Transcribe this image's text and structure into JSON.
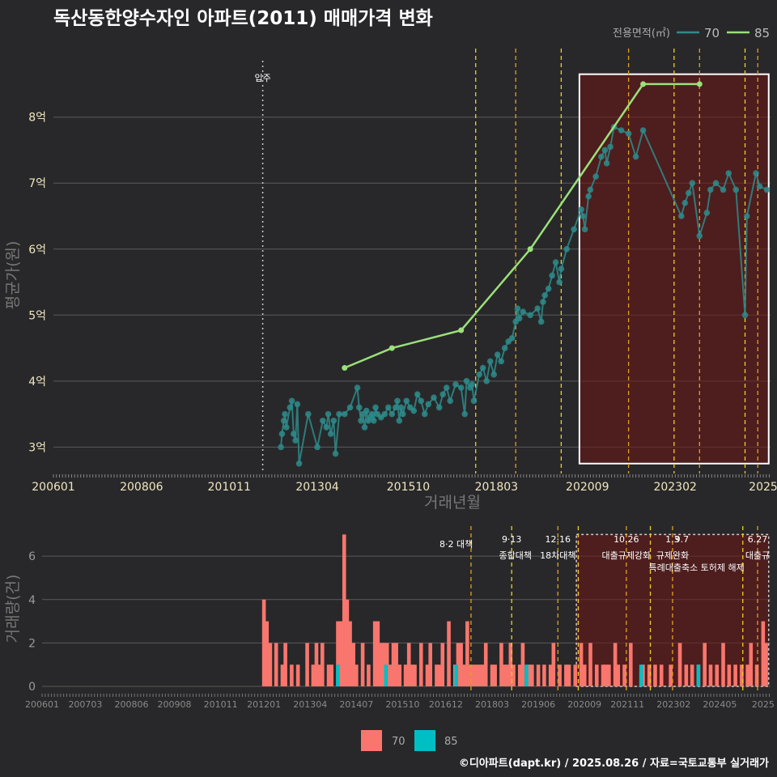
{
  "title": "독산동한양수자인 아파트(2011) 매매가격 변화",
  "legend": {
    "title": "전용면적(㎡)",
    "items": [
      {
        "label": "70",
        "color": "#2e8b8b"
      },
      {
        "label": "85",
        "color": "#9be07a"
      }
    ]
  },
  "move_in_label": "입주",
  "footer": "©디아파트(dapt.kr) / 2025.08.26 / 자료=국토교통부 실거래가",
  "bottom_legend": [
    {
      "label": "70",
      "color": "#f8766d"
    },
    {
      "label": "85",
      "color": "#00bfc4"
    }
  ],
  "chart_data": [
    {
      "type": "line",
      "title": "독산동한양수자인 아파트(2011) 매매가격 변화",
      "xlabel": "거래년월",
      "ylabel": "평균가(원)",
      "x_tick_labels": [
        "200601",
        "200806",
        "201011",
        "201304",
        "201510",
        "201803",
        "202009",
        "202302",
        "2025"
      ],
      "y_tick_labels": [
        "3억",
        "4억",
        "5억",
        "6억",
        "7억",
        "8억"
      ],
      "y_ticks": [
        3,
        4,
        5,
        6,
        7,
        8
      ],
      "xlim": [
        2006.0,
        2025.7
      ],
      "ylim": [
        2.6,
        9.1
      ],
      "y_unit": "억",
      "move_in": 2011.75,
      "highlight_box": [
        2020.45,
        2025.65,
        2.75,
        8.65
      ],
      "policy_lines": [
        2017.6,
        2018.7,
        2019.95,
        2021.8,
        2023.05,
        2023.75,
        2025.0,
        2025.35
      ],
      "series": [
        {
          "name": "70",
          "x": [
            2012.25,
            2012.28,
            2012.33,
            2012.36,
            2012.4,
            2012.5,
            2012.55,
            2012.6,
            2012.65,
            2012.7,
            2012.75,
            2013.0,
            2013.25,
            2013.4,
            2013.5,
            2013.55,
            2013.62,
            2013.7,
            2013.75,
            2013.85,
            2014.0,
            2014.15,
            2014.35,
            2014.4,
            2014.45,
            2014.5,
            2014.55,
            2014.6,
            2014.65,
            2014.7,
            2014.75,
            2014.8,
            2014.85,
            2014.9,
            2015.0,
            2015.1,
            2015.2,
            2015.3,
            2015.4,
            2015.45,
            2015.5,
            2015.55,
            2015.6,
            2015.7,
            2015.8,
            2015.9,
            2016.0,
            2016.1,
            2016.2,
            2016.3,
            2016.45,
            2016.6,
            2016.7,
            2016.8,
            2016.9,
            2017.05,
            2017.2,
            2017.3,
            2017.35,
            2017.45,
            2017.5,
            2017.55,
            2017.7,
            2017.8,
            2017.9,
            2018.0,
            2018.1,
            2018.2,
            2018.3,
            2018.4,
            2018.5,
            2018.6,
            2018.7,
            2018.75,
            2018.8,
            2018.9,
            2019.1,
            2019.3,
            2019.4,
            2019.45,
            2019.5,
            2019.6,
            2019.7,
            2019.8,
            2019.9,
            2019.95,
            2020.1,
            2020.3,
            2020.5,
            2020.55,
            2020.6,
            2020.7,
            2020.75,
            2020.9,
            2021.05,
            2021.15,
            2021.2,
            2021.3,
            2021.4,
            2021.6,
            2021.8,
            2022.0,
            2022.2,
            2023.25,
            2023.35,
            2023.45,
            2023.55,
            2023.75,
            2023.95,
            2024.05,
            2024.2,
            2024.4,
            2024.55,
            2024.75,
            2025.0,
            2025.05,
            2025.3,
            2025.4,
            2025.6
          ],
          "y": [
            3.0,
            3.2,
            3.4,
            3.5,
            3.3,
            3.6,
            3.7,
            3.2,
            3.1,
            3.65,
            2.75,
            3.5,
            3.0,
            3.4,
            3.3,
            3.5,
            3.2,
            3.4,
            2.9,
            3.5,
            3.5,
            3.6,
            3.9,
            3.6,
            3.4,
            3.5,
            3.3,
            3.55,
            3.4,
            3.45,
            3.5,
            3.4,
            3.6,
            3.5,
            3.45,
            3.5,
            3.6,
            3.5,
            3.6,
            3.7,
            3.4,
            3.6,
            3.5,
            3.7,
            3.6,
            3.55,
            3.8,
            3.7,
            3.5,
            3.65,
            3.75,
            3.6,
            3.8,
            3.9,
            3.7,
            3.95,
            3.9,
            3.5,
            4.0,
            3.9,
            3.95,
            3.7,
            4.1,
            4.2,
            4.0,
            4.3,
            4.1,
            4.4,
            4.3,
            4.5,
            4.6,
            4.65,
            4.9,
            5.1,
            4.95,
            5.05,
            5.0,
            5.1,
            4.9,
            5.2,
            5.3,
            5.4,
            5.6,
            5.8,
            5.5,
            5.7,
            6.0,
            6.3,
            6.6,
            6.5,
            6.3,
            6.8,
            6.9,
            7.1,
            7.4,
            7.5,
            7.3,
            7.55,
            7.85,
            7.8,
            7.75,
            7.4,
            7.8,
            6.5,
            6.7,
            6.85,
            7.0,
            6.2,
            6.55,
            6.9,
            7.0,
            6.9,
            7.15,
            6.9,
            5.0,
            6.5,
            7.15,
            6.95,
            6.9
          ]
        },
        {
          "name": "85",
          "x": [
            2014.0,
            2015.3,
            2017.2,
            2019.1,
            2022.2,
            2023.75
          ],
          "y": [
            4.2,
            4.5,
            4.77,
            6.0,
            8.5,
            8.5
          ]
        }
      ]
    },
    {
      "type": "bar",
      "xlabel": "",
      "ylabel": "거래량(건)",
      "x_tick_labels": [
        "200601",
        "200703",
        "200806",
        "200908",
        "201011",
        "201201",
        "201304",
        "201407",
        "201510",
        "201612",
        "201803",
        "201906",
        "202009",
        "202111",
        "202302",
        "202405",
        "2025"
      ],
      "y_tick_labels": [
        "0",
        "2",
        "4",
        "6"
      ],
      "y_ticks": [
        0,
        2,
        4,
        6
      ],
      "xlim": [
        2006.0,
        2025.7
      ],
      "ylim": [
        0,
        7.2
      ],
      "highlight_box": [
        2020.45,
        2025.65,
        0,
        7.0
      ],
      "policy_lines": [
        2017.6,
        2018.7,
        2019.95,
        2020.5,
        2021.8,
        2022.45,
        2023.05,
        2024.95,
        2025.35
      ],
      "annotations": [
        {
          "x": 2017.2,
          "label": "8·2 대책"
        },
        {
          "x": 2018.7,
          "label": "9·13"
        },
        {
          "x": 2018.8,
          "label": "종합대책"
        },
        {
          "x": 2019.95,
          "label": "12·16"
        },
        {
          "x": 2019.95,
          "label": "18차대책"
        },
        {
          "x": 2021.8,
          "label": "10.26"
        },
        {
          "x": 2021.8,
          "label": "대출규제강화"
        },
        {
          "x": 2023.05,
          "label": "1.3"
        },
        {
          "x": 2023.05,
          "label": "규제완화"
        },
        {
          "x": 2023.3,
          "label": "9.7"
        },
        {
          "x": 2023.7,
          "label": "특례대출축소 토허제 해제"
        },
        {
          "x": 2025.35,
          "label": "6.27"
        },
        {
          "x": 2025.35,
          "label": "대출규"
        }
      ],
      "series": [
        {
          "name": "70",
          "x": [
            2012.0,
            2012.08,
            2012.17,
            2012.33,
            2012.5,
            2012.58,
            2012.75,
            2012.92,
            2013.17,
            2013.33,
            2013.42,
            2013.5,
            2013.58,
            2013.75,
            2013.83,
            2014.0,
            2014.08,
            2014.17,
            2014.25,
            2014.33,
            2014.42,
            2014.5,
            2014.67,
            2014.83,
            2015.0,
            2015.08,
            2015.17,
            2015.25,
            2015.33,
            2015.42,
            2015.5,
            2015.58,
            2015.67,
            2015.83,
            2015.92,
            2016.0,
            2016.08,
            2016.25,
            2016.42,
            2016.5,
            2016.67,
            2016.75,
            2016.83,
            2017.0,
            2017.17,
            2017.25,
            2017.33,
            2017.42,
            2017.5,
            2017.58,
            2017.67,
            2017.75,
            2017.83,
            2017.92,
            2018.0,
            2018.17,
            2018.25,
            2018.42,
            2018.5,
            2018.58,
            2018.67,
            2018.75,
            2018.92,
            2019.0,
            2019.17,
            2019.25,
            2019.42,
            2019.58,
            2019.75,
            2019.83,
            2020.0,
            2020.17,
            2020.25,
            2020.42,
            2020.58,
            2020.67,
            2020.83,
            2021.0,
            2021.17,
            2021.25,
            2021.33,
            2021.5,
            2021.58,
            2021.75,
            2021.92,
            2022.25,
            2022.42,
            2022.58,
            2022.75,
            2023.0,
            2023.25,
            2023.42,
            2023.58,
            2023.75,
            2023.92,
            2024.08,
            2024.25,
            2024.42,
            2024.58,
            2024.75,
            2024.92,
            2025.08,
            2025.17,
            2025.33,
            2025.5,
            2025.58
          ],
          "y": [
            4,
            3,
            2,
            2,
            1,
            2,
            1,
            1,
            2,
            1,
            2,
            1,
            2,
            1,
            1,
            3,
            3,
            7,
            4,
            3,
            2,
            1,
            2,
            1,
            3,
            3,
            2,
            2,
            2,
            1,
            2,
            2,
            1,
            1,
            2,
            1,
            1,
            2,
            1,
            2,
            1,
            1,
            2,
            3,
            1,
            2,
            2,
            1,
            3,
            1,
            1,
            1,
            1,
            1,
            2,
            1,
            1,
            2,
            1,
            1,
            2,
            1,
            1,
            2,
            1,
            1,
            1,
            1,
            1,
            2,
            1,
            1,
            1,
            1,
            2,
            1,
            2,
            1,
            1,
            1,
            1,
            2,
            1,
            1,
            2,
            1,
            1,
            1,
            1,
            1,
            2,
            1,
            1,
            1,
            2,
            1,
            1,
            2,
            1,
            1,
            1,
            1,
            2,
            1,
            3,
            2
          ]
        },
        {
          "name": "85",
          "x": [
            2014.0,
            2015.3,
            2017.2,
            2019.1,
            2022.2,
            2023.75
          ],
          "y": [
            1,
            1,
            1,
            1,
            1,
            1
          ]
        }
      ]
    }
  ]
}
